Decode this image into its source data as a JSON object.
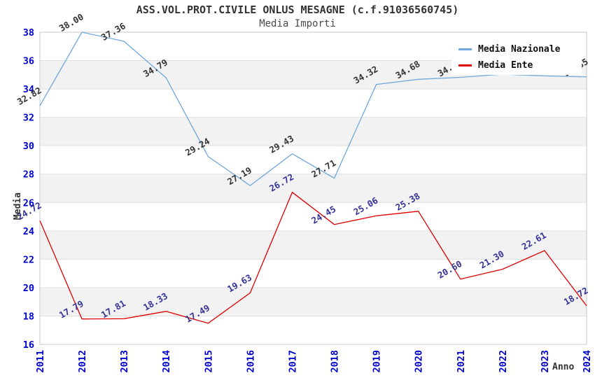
{
  "title": "ASS.VOL.PROT.CIVILE ONLUS MESAGNE (c.f.91036560745)",
  "subtitle": "Media Importi",
  "legend": {
    "position": "top-right",
    "items": [
      {
        "label": "Media Nazionale",
        "color": "#6fa8dc"
      },
      {
        "label": "Media Ente",
        "color": "#e00000"
      }
    ]
  },
  "axes": {
    "x_label": "Anno",
    "y_label": "Media",
    "y_ticks": [
      16,
      18,
      20,
      22,
      24,
      26,
      28,
      30,
      32,
      34,
      36,
      38
    ],
    "x_ticks": [
      "2011",
      "2012",
      "2013",
      "2014",
      "2015",
      "2016",
      "2017",
      "2018",
      "2019",
      "2020",
      "2021",
      "2022",
      "2023",
      "2024"
    ],
    "tick_color": "#0000cc",
    "band_color": "#f2f2f2",
    "grid_color": "#e0e0e0",
    "spine_color": "#c8c8c8"
  },
  "chart_data": {
    "type": "line",
    "title": "ASS.VOL.PROT.CIVILE ONLUS MESAGNE (c.f.91036560745)",
    "subtitle": "Media Importi",
    "xlabel": "Anno",
    "ylabel": "Media",
    "x": [
      2011,
      2012,
      2013,
      2014,
      2015,
      2016,
      2017,
      2018,
      2019,
      2020,
      2021,
      2022,
      2023,
      2024
    ],
    "ylim": [
      16,
      38
    ],
    "grid": true,
    "legend_position": "top-right",
    "series": [
      {
        "name": "Media Nazionale",
        "color": "#6fa8dc",
        "label_color": "#333333",
        "values": [
          32.82,
          38.0,
          37.36,
          34.79,
          29.24,
          27.19,
          29.43,
          27.71,
          34.32,
          34.68,
          34.82,
          35.04,
          34.92,
          34.85
        ]
      },
      {
        "name": "Media Ente",
        "color": "#e00000",
        "label_color": "#333399",
        "values": [
          24.72,
          17.79,
          17.81,
          18.33,
          17.49,
          19.63,
          26.72,
          24.45,
          25.06,
          25.38,
          20.6,
          21.3,
          22.61,
          18.72
        ]
      }
    ]
  }
}
